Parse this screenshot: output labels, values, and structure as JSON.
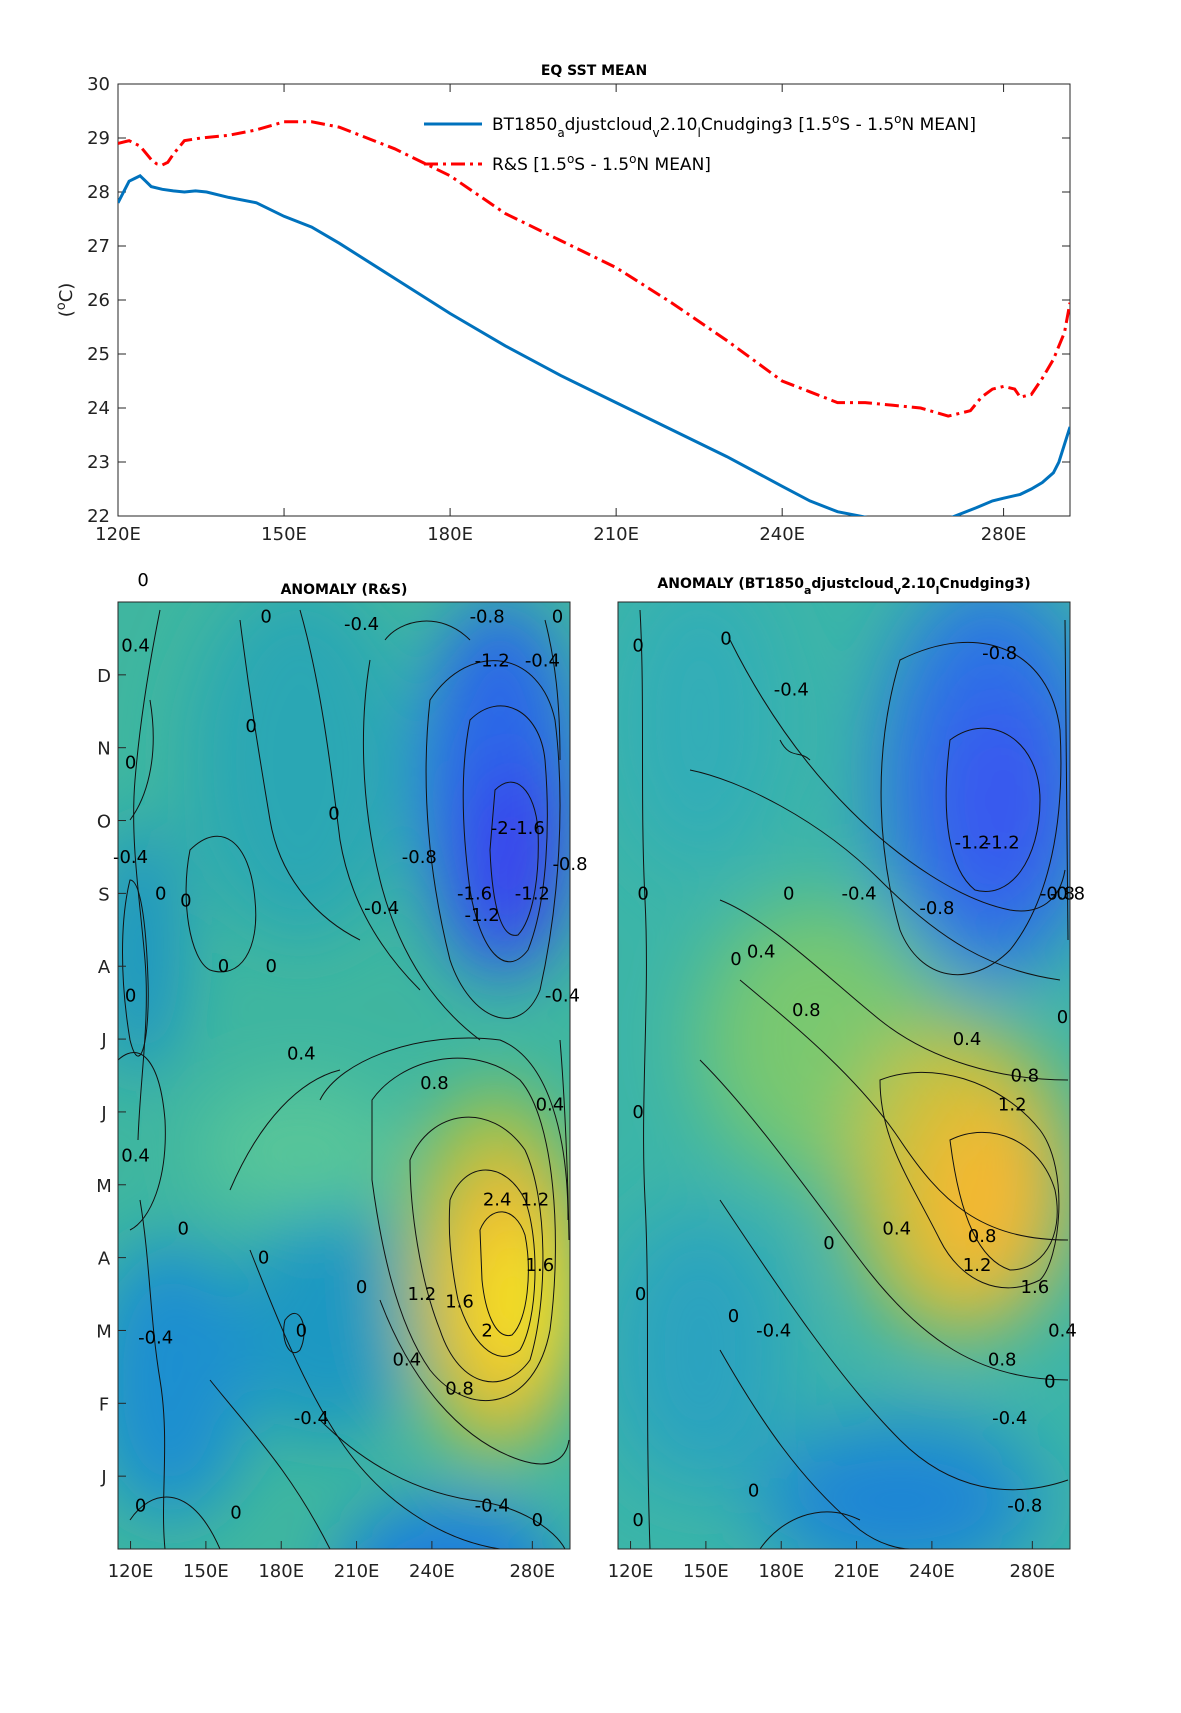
{
  "chart_data": [
    {
      "type": "line",
      "title": "EQ SST MEAN",
      "ylabel": "(°C)",
      "xlabel": "",
      "xlim": [
        120,
        292
      ],
      "ylim": [
        22,
        30
      ],
      "x_ticks": [
        120,
        150,
        180,
        210,
        240,
        280
      ],
      "x_tick_labels": [
        "120E",
        "150E",
        "180E",
        "210E",
        "240E",
        "280E"
      ],
      "y_ticks": [
        22,
        23,
        24,
        25,
        26,
        27,
        28,
        29,
        30
      ],
      "legend_position": "top-right",
      "series": [
        {
          "name": "BT1850_adjustcloud_v2.10_lCnudging3 [1.5°S - 1.5°N MEAN]",
          "name_parts": {
            "pre": "BT1850",
            "s1": "a",
            "mid1": "djustcloud",
            "s2": "v",
            "mid2": "2.10",
            "s3": "l",
            "post": "Cnudging3 [1.5",
            "deg1": "o",
            "post2": "S - 1.5",
            "deg2": "o",
            "post3": "N MEAN]"
          },
          "color": "#0072BD",
          "style": "solid",
          "x": [
            120,
            122,
            123,
            124,
            125,
            126,
            128,
            130,
            132,
            134,
            136,
            140,
            145,
            150,
            155,
            160,
            170,
            180,
            190,
            200,
            210,
            220,
            230,
            240,
            245,
            250,
            255,
            258,
            262,
            266,
            270,
            275,
            278,
            280,
            283,
            285,
            287,
            289,
            290,
            292
          ],
          "y": [
            27.8,
            28.2,
            28.25,
            28.3,
            28.2,
            28.1,
            28.05,
            28.02,
            28.0,
            28.02,
            28.0,
            27.9,
            27.8,
            27.55,
            27.35,
            27.05,
            26.4,
            25.75,
            25.15,
            24.6,
            24.1,
            23.6,
            23.1,
            22.55,
            22.28,
            22.08,
            21.98,
            21.93,
            21.9,
            21.9,
            21.95,
            22.15,
            22.28,
            22.33,
            22.4,
            22.5,
            22.62,
            22.8,
            23.0,
            23.65
          ]
        },
        {
          "name": "R&S [1.5°S - 1.5°N MEAN]",
          "name_parts": {
            "pre": "R&S [1.5",
            "deg1": "o",
            "post2": "S - 1.5",
            "deg2": "o",
            "post3": "N MEAN]"
          },
          "color": "#FF0000",
          "style": "dashdot",
          "x": [
            120,
            122,
            124,
            126,
            127,
            128,
            129,
            130,
            132,
            135,
            140,
            145,
            150,
            155,
            160,
            170,
            180,
            190,
            200,
            210,
            220,
            230,
            240,
            245,
            250,
            255,
            260,
            265,
            270,
            274,
            276,
            278,
            280,
            282,
            283,
            285,
            287,
            289,
            291,
            292
          ],
          "y": [
            28.9,
            28.95,
            28.85,
            28.6,
            28.52,
            28.5,
            28.55,
            28.7,
            28.95,
            29.0,
            29.05,
            29.15,
            29.3,
            29.3,
            29.2,
            28.8,
            28.3,
            27.6,
            27.1,
            26.6,
            25.95,
            25.25,
            24.5,
            24.3,
            24.1,
            24.1,
            24.05,
            24.0,
            23.85,
            23.95,
            24.2,
            24.35,
            24.4,
            24.35,
            24.2,
            24.25,
            24.55,
            24.9,
            25.4,
            25.95
          ]
        }
      ]
    },
    {
      "type": "heatmap",
      "title": "ANOMALY (R&S)",
      "x_tick_labels": [
        "120E",
        "150E",
        "180E",
        "210E",
        "240E",
        "280E"
      ],
      "y_tick_labels": [
        "J",
        "F",
        "M",
        "A",
        "M",
        "J",
        "J",
        "A",
        "S",
        "O",
        "N",
        "D"
      ],
      "colormap": "parula",
      "contour_labels": [
        {
          "text": "0",
          "lon": 124,
          "m": 0.6
        },
        {
          "text": "0",
          "lon": 162,
          "m": 0.5
        },
        {
          "text": "-0.4",
          "lon": 192,
          "m": 1.8
        },
        {
          "text": "-0.4",
          "lon": 264,
          "m": 0.6
        },
        {
          "text": "0",
          "lon": 282,
          "m": 0.4
        },
        {
          "text": "0.8",
          "lon": 251,
          "m": 2.2
        },
        {
          "text": "0.4",
          "lon": 230,
          "m": 2.6
        },
        {
          "text": "-0.4",
          "lon": 130,
          "m": 2.9
        },
        {
          "text": "0",
          "lon": 188,
          "m": 3.0
        },
        {
          "text": "2",
          "lon": 262,
          "m": 3.0
        },
        {
          "text": "1.6",
          "lon": 251,
          "m": 3.4
        },
        {
          "text": "1.2",
          "lon": 236,
          "m": 3.5
        },
        {
          "text": "0",
          "lon": 212,
          "m": 3.6
        },
        {
          "text": "1.6",
          "lon": 283,
          "m": 3.9
        },
        {
          "text": "2.4",
          "lon": 266,
          "m": 4.8
        },
        {
          "text": "1.2",
          "lon": 281,
          "m": 4.8
        },
        {
          "text": "0",
          "lon": 173,
          "m": 4.0
        },
        {
          "text": "0",
          "lon": 141,
          "m": 4.4
        },
        {
          "text": "0.8",
          "lon": 241,
          "m": 6.4
        },
        {
          "text": "0.4",
          "lon": 287,
          "m": 6.1
        },
        {
          "text": "0.4",
          "lon": 188,
          "m": 6.8
        },
        {
          "text": "0.4",
          "lon": 122,
          "m": 5.4
        },
        {
          "text": "0",
          "lon": 120,
          "m": 7.6
        },
        {
          "text": "-0.4",
          "lon": 292,
          "m": 7.6
        },
        {
          "text": "0",
          "lon": 176,
          "m": 8.0
        },
        {
          "text": "-0.4",
          "lon": 220,
          "m": 8.8
        },
        {
          "text": "-0.8",
          "lon": 235,
          "m": 9.5
        },
        {
          "text": "-1.6",
          "lon": 257,
          "m": 9.0
        },
        {
          "text": "-1.2",
          "lon": 260,
          "m": 8.7
        },
        {
          "text": "-2",
          "lon": 267,
          "m": 9.9
        },
        {
          "text": "-1.6",
          "lon": 278,
          "m": 9.9
        },
        {
          "text": "-1.2",
          "lon": 280,
          "m": 9.0
        },
        {
          "text": "-0.8",
          "lon": 295,
          "m": 9.4
        },
        {
          "text": "0",
          "lon": 142,
          "m": 8.9
        },
        {
          "text": "-0.4",
          "lon": 120,
          "m": 9.5
        },
        {
          "text": "0",
          "lon": 132,
          "m": 9.0
        },
        {
          "text": "0",
          "lon": 157,
          "m": 8.0
        },
        {
          "text": "0",
          "lon": 201,
          "m": 10.1
        },
        {
          "text": "0",
          "lon": 120,
          "m": 10.8
        },
        {
          "text": "0",
          "lon": 168,
          "m": 11.3
        },
        {
          "text": "0.4",
          "lon": 122,
          "m": 12.4
        },
        {
          "text": "0",
          "lon": 125,
          "m": 13.3
        },
        {
          "text": "0",
          "lon": 174,
          "m": 12.8
        },
        {
          "text": "-0.4",
          "lon": 212,
          "m": 12.7
        },
        {
          "text": "-0.8",
          "lon": 262,
          "m": 12.8
        },
        {
          "text": "-1.2",
          "lon": 264,
          "m": 12.2
        },
        {
          "text": "-0.4",
          "lon": 284,
          "m": 12.2
        },
        {
          "text": "0",
          "lon": 290,
          "m": 12.8
        }
      ]
    },
    {
      "type": "heatmap",
      "title": "ANOMALY (BT1850_adjustcloud_v2.10_lCnudging3)",
      "title_parts": {
        "pre": "ANOMALY (BT1850",
        "s1": "a",
        "mid1": "djustcloud",
        "s2": "v",
        "mid2": "2.10",
        "s3": "l",
        "post": "Cnudging3)"
      },
      "x_tick_labels": [
        "120E",
        "150E",
        "180E",
        "210E",
        "240E",
        "280E"
      ],
      "colormap": "parula",
      "contour_labels": [
        {
          "text": "0",
          "lon": 123,
          "m": 0.4
        },
        {
          "text": "0",
          "lon": 169,
          "m": 0.8
        },
        {
          "text": "-0.8",
          "lon": 277,
          "m": 0.6
        },
        {
          "text": "-0.4",
          "lon": 271,
          "m": 1.8
        },
        {
          "text": "0",
          "lon": 287,
          "m": 2.3
        },
        {
          "text": "0.8",
          "lon": 268,
          "m": 2.6
        },
        {
          "text": "1.6",
          "lon": 281,
          "m": 3.6
        },
        {
          "text": "0.4",
          "lon": 292,
          "m": 3.0
        },
        {
          "text": "-0.4",
          "lon": 177,
          "m": 3.0
        },
        {
          "text": "0",
          "lon": 161,
          "m": 3.2
        },
        {
          "text": "0",
          "lon": 124,
          "m": 3.5
        },
        {
          "text": "1.2",
          "lon": 258,
          "m": 3.9
        },
        {
          "text": "0.8",
          "lon": 260,
          "m": 4.3
        },
        {
          "text": "0.4",
          "lon": 226,
          "m": 4.4
        },
        {
          "text": "0",
          "lon": 199,
          "m": 4.2
        },
        {
          "text": "0.8",
          "lon": 277,
          "m": 6.5
        },
        {
          "text": "1.2",
          "lon": 272,
          "m": 6.1
        },
        {
          "text": "0",
          "lon": 123,
          "m": 6.0
        },
        {
          "text": "0.4",
          "lon": 254,
          "m": 7.0
        },
        {
          "text": "0.8",
          "lon": 190,
          "m": 7.4
        },
        {
          "text": "0.4",
          "lon": 172,
          "m": 8.2
        },
        {
          "text": "0",
          "lon": 162,
          "m": 8.1
        },
        {
          "text": "0",
          "lon": 292,
          "m": 7.3
        },
        {
          "text": "0",
          "lon": 183,
          "m": 9.0
        },
        {
          "text": "-0.4",
          "lon": 211,
          "m": 9.0
        },
        {
          "text": "-0.8",
          "lon": 242,
          "m": 8.8
        },
        {
          "text": "-0.8",
          "lon": 290,
          "m": 9.0
        },
        {
          "text": "-1.2",
          "lon": 256,
          "m": 9.7
        },
        {
          "text": "-1.2",
          "lon": 268,
          "m": 9.7
        },
        {
          "text": "-0.8",
          "lon": 294,
          "m": 9.0
        },
        {
          "text": "0",
          "lon": 125,
          "m": 9.0
        },
        {
          "text": "-0.8",
          "lon": 267,
          "m": 12.3
        },
        {
          "text": "-0.4",
          "lon": 184,
          "m": 11.8
        },
        {
          "text": "0",
          "lon": 123,
          "m": 12.4
        },
        {
          "text": "0",
          "lon": 158,
          "m": 12.5
        }
      ]
    }
  ]
}
